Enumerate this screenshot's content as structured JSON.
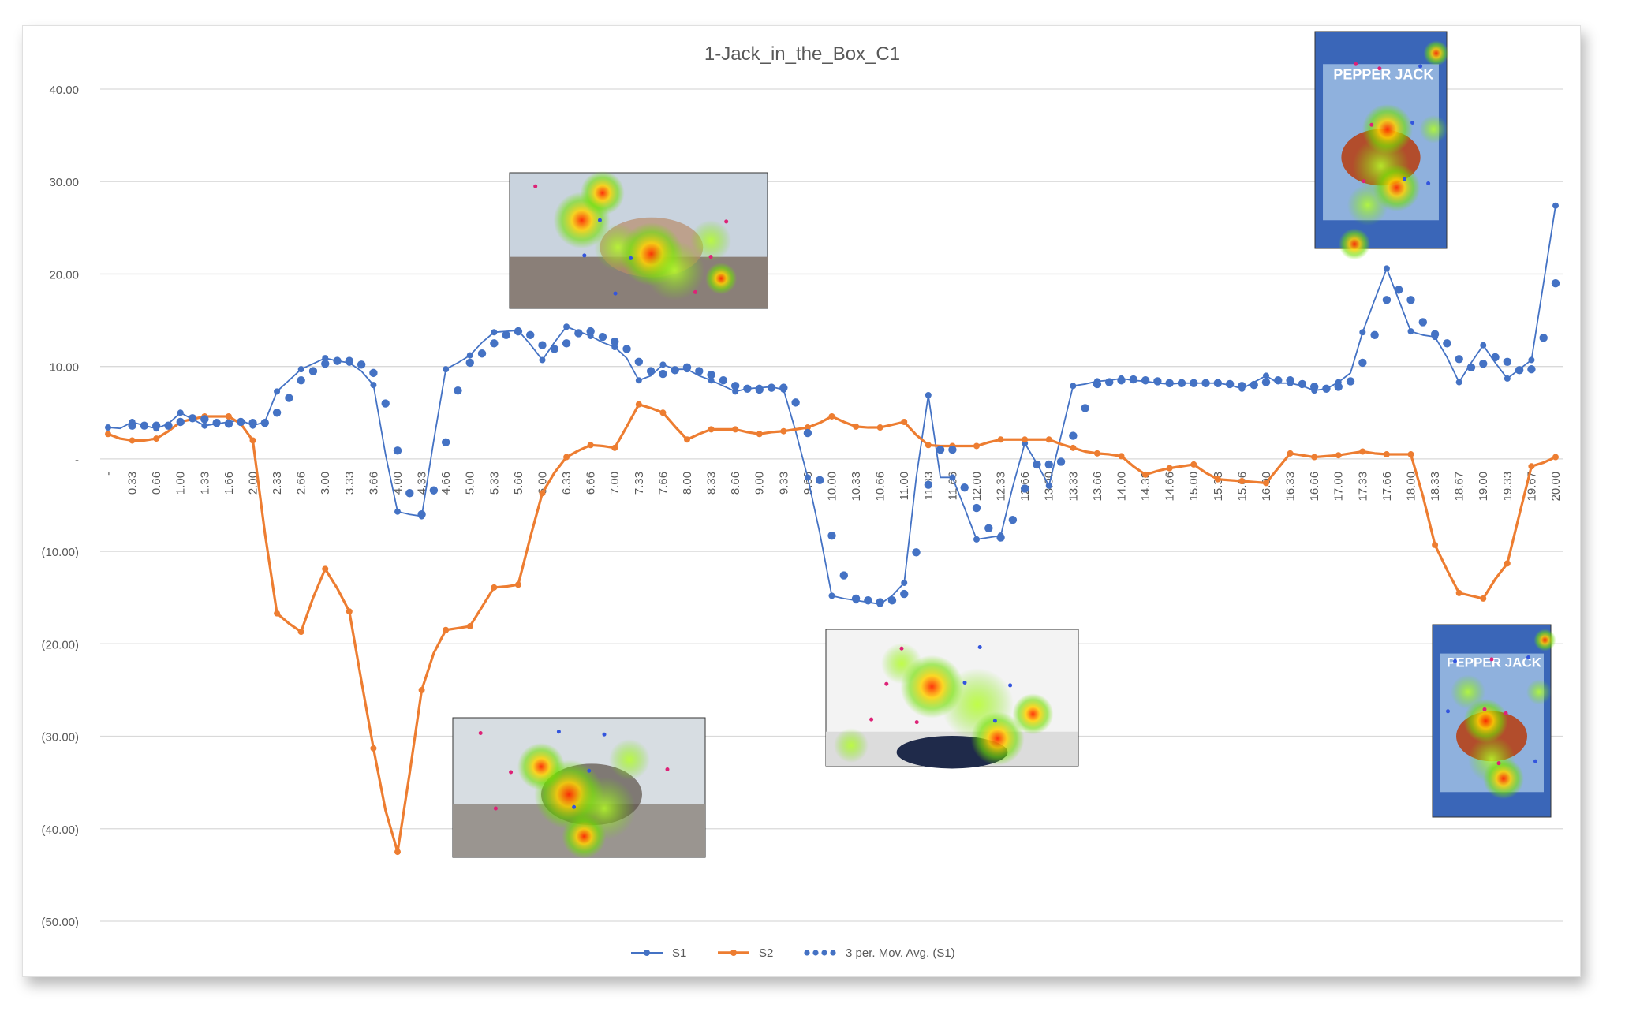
{
  "chart_data": {
    "type": "line",
    "title": "1-Jack_in_the_Box_C1",
    "xlabel": "",
    "ylabel": "",
    "ylim": [
      -50,
      40
    ],
    "y_ticks": [
      40,
      30,
      20,
      10,
      0,
      -10,
      -20,
      -30,
      -40,
      -50
    ],
    "y_tick_labels": [
      "40.00",
      "30.00",
      "20.00",
      "10.00",
      "-",
      "(10.00)",
      "(20.00)",
      "(30.00)",
      "(40.00)",
      "(50.00)"
    ],
    "x_tick_labels": [
      "-",
      "0.33",
      "0.66",
      "1.00",
      "1.33",
      "1.66",
      "2.00",
      "2.33",
      "2.66",
      "3.00",
      "3.33",
      "3.66",
      "4.00",
      "4.33",
      "4.66",
      "5.00",
      "5.33",
      "5.66",
      "6.00",
      "6.33",
      "6.66",
      "7.00",
      "7.33",
      "7.66",
      "8.00",
      "8.33",
      "8.66",
      "9.00",
      "9.33",
      "9.66",
      "10.00",
      "10.33",
      "10.66",
      "11.00",
      "11.33",
      "11.66",
      "12.00",
      "12.33",
      "12.66",
      "13.00",
      "13.33",
      "13.66",
      "14.00",
      "14.33",
      "14.66",
      "15.00",
      "15.33",
      "15.66",
      "16.00",
      "16.33",
      "16.66",
      "17.00",
      "17.33",
      "17.66",
      "18.00",
      "18.33",
      "18.67",
      "19.00",
      "19.33",
      "19.67",
      "20.00"
    ],
    "x_tick_every": 2,
    "grid": true,
    "legend_position": "bottom",
    "series": [
      {
        "name": "S1",
        "style": "line-marker",
        "color": "#4472C4",
        "values": [
          3.4,
          3.3,
          4.0,
          3.6,
          3.3,
          3.8,
          5.0,
          4.3,
          3.6,
          3.8,
          4.0,
          4.2,
          3.6,
          4.0,
          7.3,
          8.5,
          9.7,
          10.3,
          10.9,
          10.6,
          10.4,
          9.5,
          8.0,
          0.5,
          -5.7,
          -6.0,
          -6.2,
          2.0,
          9.7,
          10.4,
          11.2,
          12.6,
          13.7,
          13.8,
          13.9,
          12.4,
          10.7,
          12.6,
          14.3,
          13.8,
          13.3,
          12.6,
          12.1,
          10.9,
          8.5,
          9.0,
          10.2,
          9.7,
          9.7,
          9.0,
          8.5,
          7.9,
          7.3,
          7.6,
          7.7,
          7.8,
          7.5,
          3.0,
          -2.0,
          -8.0,
          -14.8,
          -15.1,
          -15.3,
          -15.5,
          -15.7,
          -14.8,
          -13.4,
          -2.0,
          6.9,
          -2.0,
          -2.0,
          -5.3,
          -8.7,
          -8.5,
          -8.3,
          -3.0,
          1.7,
          -0.5,
          -2.9,
          2.5,
          7.9,
          8.1,
          8.4,
          8.5,
          8.7,
          8.5,
          8.4,
          8.2,
          8.1,
          8.2,
          8.2,
          8.2,
          8.2,
          8.0,
          7.6,
          8.3,
          9.0,
          8.2,
          8.2,
          7.9,
          7.4,
          7.6,
          8.3,
          9.3,
          13.7,
          17.2,
          20.6,
          17.2,
          13.8,
          13.4,
          13.2,
          11.0,
          8.3,
          10.4,
          12.3,
          10.4,
          8.7,
          9.7,
          10.7,
          19.0,
          27.4
        ]
      },
      {
        "name": "S2",
        "style": "line-marker",
        "color": "#ED7D31",
        "values": [
          2.7,
          2.2,
          2.0,
          2.0,
          2.2,
          3.0,
          4.0,
          4.3,
          4.6,
          4.6,
          4.6,
          3.8,
          2.0,
          -8.0,
          -16.7,
          -17.8,
          -18.7,
          -15.0,
          -11.9,
          -14.0,
          -16.5,
          -24.0,
          -31.3,
          -38.0,
          -42.5,
          -34.0,
          -25.0,
          -21.0,
          -18.5,
          -18.3,
          -18.1,
          -16.0,
          -13.9,
          -13.8,
          -13.6,
          -8.5,
          -3.7,
          -1.5,
          0.2,
          0.9,
          1.5,
          1.4,
          1.2,
          3.5,
          5.9,
          5.5,
          5.0,
          3.5,
          2.1,
          2.7,
          3.2,
          3.2,
          3.2,
          2.9,
          2.7,
          2.9,
          3.0,
          3.2,
          3.4,
          3.9,
          4.6,
          4.0,
          3.5,
          3.4,
          3.4,
          3.7,
          4.0,
          2.6,
          1.5,
          1.4,
          1.4,
          1.4,
          1.4,
          1.8,
          2.1,
          2.1,
          2.1,
          2.1,
          2.1,
          1.6,
          1.2,
          0.8,
          0.6,
          0.5,
          0.3,
          -0.8,
          -1.7,
          -1.3,
          -1.0,
          -0.8,
          -0.6,
          -1.5,
          -2.2,
          -2.3,
          -2.4,
          -2.5,
          -2.6,
          -1.0,
          0.6,
          0.4,
          0.2,
          0.3,
          0.4,
          0.6,
          0.8,
          0.6,
          0.5,
          0.5,
          0.5,
          -4.0,
          -9.3,
          -12.0,
          -14.5,
          -14.8,
          -15.1,
          -13.0,
          -11.3,
          -6.0,
          -0.8,
          -0.4,
          0.2
        ]
      },
      {
        "name": "3 per. Mov. Avg. (S1)",
        "style": "dotted",
        "color": "#4472C4",
        "values": [
          null,
          null,
          3.6,
          3.6,
          3.6,
          3.6,
          4.0,
          4.4,
          4.3,
          3.9,
          3.8,
          4.0,
          3.9,
          3.9,
          5.0,
          6.6,
          8.5,
          9.5,
          10.3,
          10.6,
          10.6,
          10.2,
          9.3,
          6.0,
          0.9,
          -3.7,
          -6.0,
          -3.4,
          1.8,
          7.4,
          10.4,
          11.4,
          12.5,
          13.4,
          13.8,
          13.4,
          12.3,
          11.9,
          12.5,
          13.6,
          13.8,
          13.2,
          12.7,
          11.9,
          10.5,
          9.5,
          9.2,
          9.6,
          9.9,
          9.5,
          9.1,
          8.5,
          7.9,
          7.6,
          7.5,
          7.7,
          7.7,
          6.1,
          2.8,
          -2.3,
          -8.3,
          -12.6,
          -15.1,
          -15.3,
          -15.5,
          -15.3,
          -14.6,
          -10.1,
          -2.8,
          1.0,
          1.0,
          -3.1,
          -5.3,
          -7.5,
          -8.5,
          -6.6,
          -3.2,
          -0.6,
          -0.6,
          -0.3,
          2.5,
          5.5,
          8.1,
          8.3,
          8.5,
          8.6,
          8.5,
          8.4,
          8.2,
          8.2,
          8.2,
          8.2,
          8.2,
          8.1,
          7.9,
          8.0,
          8.3,
          8.5,
          8.5,
          8.1,
          7.8,
          7.6,
          7.8,
          8.4,
          10.4,
          13.4,
          17.2,
          18.3,
          17.2,
          14.8,
          13.5,
          12.5,
          10.8,
          9.9,
          10.3,
          11.0,
          10.5,
          9.6,
          9.7,
          13.1,
          19.0
        ]
      }
    ]
  },
  "overlays": [
    {
      "name": "eye-tracking-heatmap-burger-road",
      "palette": {
        "sky": "#c9d3de",
        "ground": "#8a7f78",
        "subject": "#b88b6b"
      }
    },
    {
      "name": "eye-tracking-heatmap-runner",
      "palette": {
        "sky": "#d7dde2",
        "ground": "#9a9590",
        "subject": "#5a4f46"
      }
    },
    {
      "name": "eye-tracking-heatmap-mascot",
      "palette": {
        "sky": "#f3f3f3",
        "ground": "#dcdcdc",
        "subject": "#1f2a4a"
      }
    },
    {
      "name": "eye-tracking-heatmap-pepper-jack-ad-top",
      "palette": {
        "sky": "#3a66b8",
        "ground": "#8fb1dd",
        "subject": "#b24d2c"
      },
      "text": "PEPPER JACK"
    },
    {
      "name": "eye-tracking-heatmap-pepper-jack-ad-bottom",
      "palette": {
        "sky": "#3a66b8",
        "ground": "#8fb1dd",
        "subject": "#b24d2c"
      },
      "text": "PEPPER JACK"
    }
  ]
}
